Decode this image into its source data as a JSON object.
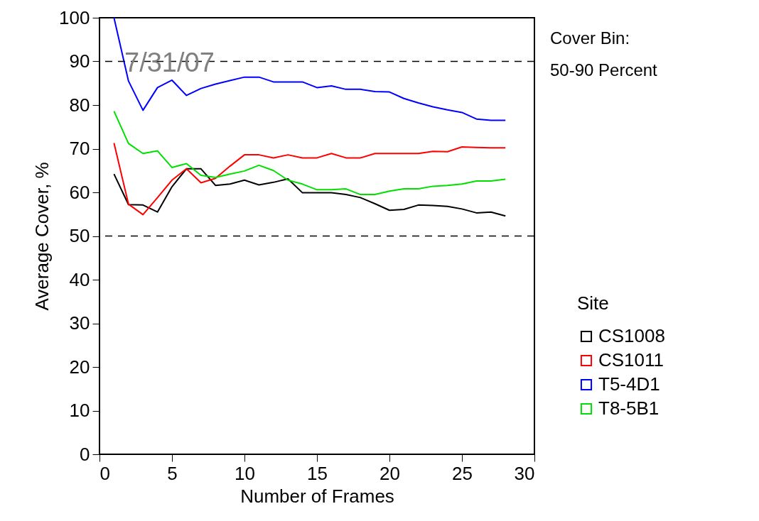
{
  "chart_data": {
    "type": "line",
    "xlabel": "Number of Frames",
    "ylabel": "Average Cover, %",
    "legend_title": "Site",
    "legend": "right",
    "marker": "none",
    "line_style": "solid",
    "grid": false,
    "x": [
      1,
      2,
      3,
      4,
      5,
      6,
      7,
      8,
      9,
      10,
      11,
      12,
      13,
      14,
      15,
      16,
      17,
      18,
      19,
      20,
      21,
      22,
      23,
      24,
      25,
      26,
      27,
      28
    ],
    "xlim": [
      0,
      30
    ],
    "xticks": [
      0,
      5,
      10,
      15,
      20,
      25,
      30
    ],
    "ylim": [
      0,
      100
    ],
    "yticks": [
      0,
      10,
      20,
      30,
      40,
      50,
      60,
      70,
      80,
      90,
      100
    ],
    "series": [
      {
        "name": "CS1008",
        "color": "#000000",
        "values": [
          64.2,
          57.2,
          57.1,
          55.5,
          61.3,
          65.4,
          65.4,
          61.6,
          61.9,
          62.8,
          61.7,
          62.3,
          63.1,
          59.9,
          59.9,
          59.9,
          59.5,
          58.8,
          57.4,
          55.9,
          56.1,
          57.1,
          57.0,
          56.8,
          56.2,
          55.3,
          55.5,
          54.6
        ]
      },
      {
        "name": "CS1011",
        "color": "#ff0000",
        "values": [
          71.3,
          57.3,
          54.9,
          58.8,
          62.8,
          65.4,
          62.2,
          63.2,
          66.0,
          68.6,
          68.6,
          67.9,
          68.6,
          67.9,
          67.9,
          68.9,
          67.9,
          67.9,
          68.9,
          68.9,
          68.9,
          68.9,
          69.4,
          69.3,
          70.4,
          70.3,
          70.2,
          70.2
        ]
      },
      {
        "name": "T5-4D1",
        "color": "#0000ff",
        "values": [
          100,
          85.5,
          78.8,
          84.0,
          85.7,
          82.2,
          83.8,
          84.8,
          85.6,
          86.4,
          86.4,
          85.3,
          85.3,
          85.3,
          84.0,
          84.4,
          83.6,
          83.6,
          83.1,
          83.0,
          81.5,
          80.5,
          79.6,
          78.9,
          78.3,
          76.8,
          76.5,
          76.5
        ]
      },
      {
        "name": "T8-5B1",
        "color": "#00e000",
        "values": [
          78.6,
          71.2,
          68.9,
          69.5,
          65.7,
          66.6,
          63.9,
          63.4,
          64.2,
          64.9,
          66.2,
          65.0,
          62.8,
          61.9,
          60.6,
          60.6,
          60.8,
          59.5,
          59.5,
          60.3,
          60.8,
          60.8,
          61.4,
          61.6,
          61.9,
          62.6,
          62.6,
          63.0
        ]
      }
    ],
    "ref_lines": [
      {
        "axis": "y",
        "value": 90,
        "color": "#000000",
        "line_style": "dashed"
      },
      {
        "axis": "y",
        "value": 50,
        "color": "#000000",
        "line_style": "dashed"
      }
    ],
    "annotations": [
      "7/31/07",
      "Cover Bin:",
      "50-90 Percent"
    ]
  }
}
